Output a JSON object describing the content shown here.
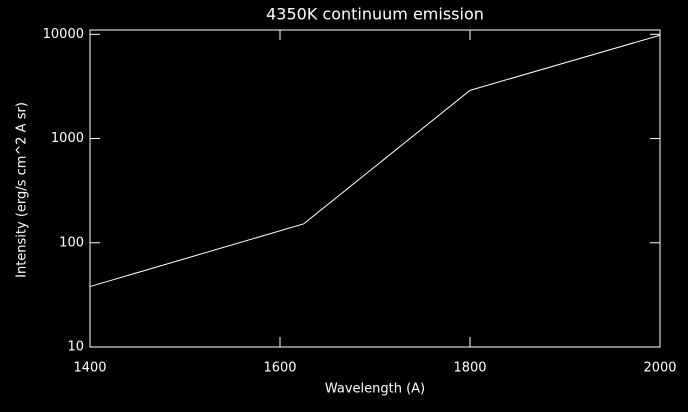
{
  "chart_data": {
    "type": "line",
    "title": "4350K continuum emission",
    "x_label": "Wavelength (A)",
    "y_label": "Intensity (erg/s cm^2 A sr)",
    "x": [
      1400,
      1625,
      1800,
      2000
    ],
    "series": [
      {
        "color": "#ffffff",
        "values": [
          38,
          152,
          2900,
          9800
        ]
      }
    ],
    "xlim": [
      1400,
      2000
    ],
    "xticks": [
      1400,
      1600,
      1800,
      2000
    ],
    "ylim": [
      10,
      11000
    ],
    "yticks": [
      10,
      100,
      1000,
      10000
    ],
    "ylog": true,
    "grid": false
  }
}
